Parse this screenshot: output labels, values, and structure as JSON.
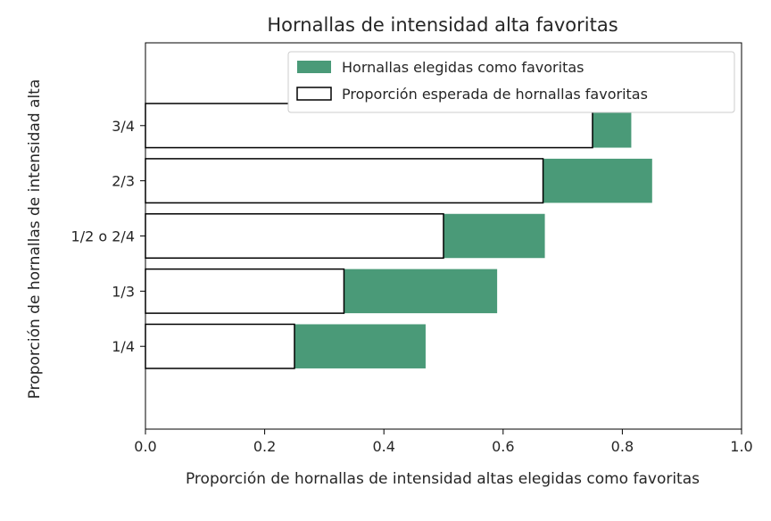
{
  "chart_data": {
    "type": "bar",
    "orientation": "horizontal",
    "title": "Hornallas de intensidad alta favoritas",
    "xlabel": "Proporción de hornallas de intensidad altas elegidas como favoritas",
    "ylabel": "Proporción de hornallas de intensidad alta",
    "xlim": [
      0,
      1.0
    ],
    "xticks": [
      "0.0",
      "0.2",
      "0.4",
      "0.6",
      "0.8",
      "1.0"
    ],
    "categories": [
      "1/4",
      "1/3",
      "1/2 o 2/4",
      "2/3",
      "3/4"
    ],
    "series": [
      {
        "name": "Hornallas elegidas como favoritas",
        "color": "#4a9a78",
        "style": "filled",
        "values": [
          0.47,
          0.59,
          0.67,
          0.85,
          0.815
        ]
      },
      {
        "name": "Proporción esperada de hornallas favoritas",
        "color": "#000000",
        "style": "outline",
        "values": [
          0.25,
          0.333,
          0.5,
          0.667,
          0.75
        ]
      }
    ],
    "legend": "top-right",
    "grid": false
  }
}
